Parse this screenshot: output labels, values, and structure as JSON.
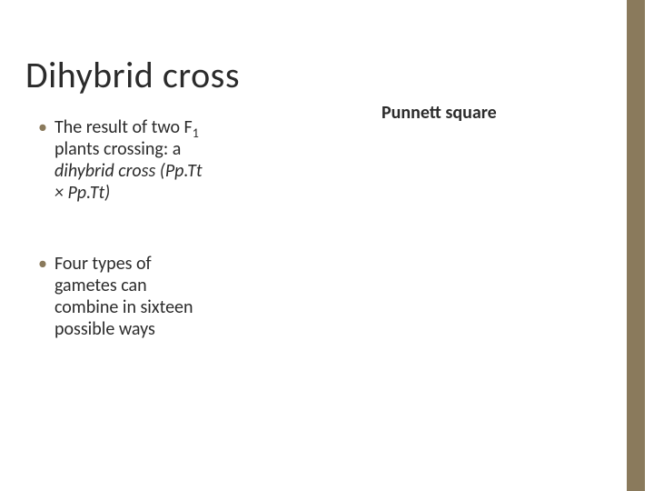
{
  "slide": {
    "title": "Dihybrid cross",
    "accent_color": "#8a7a5c",
    "background_color": "#ffffff",
    "text_color": "#2b2b2b",
    "title_fontsize": 40,
    "body_fontsize": 20,
    "bullets": [
      {
        "plain_prefix": "The result of two F",
        "subscript": "1",
        "plain_mid": " plants crossing: a ",
        "italic_tail": "dihybrid cross (Pp.Tt × Pp.Tt)"
      },
      {
        "plain_prefix": "Four types of gametes can combine in sixteen possible ways",
        "subscript": "",
        "plain_mid": "",
        "italic_tail": ""
      }
    ],
    "right_label": "Punnett square"
  }
}
